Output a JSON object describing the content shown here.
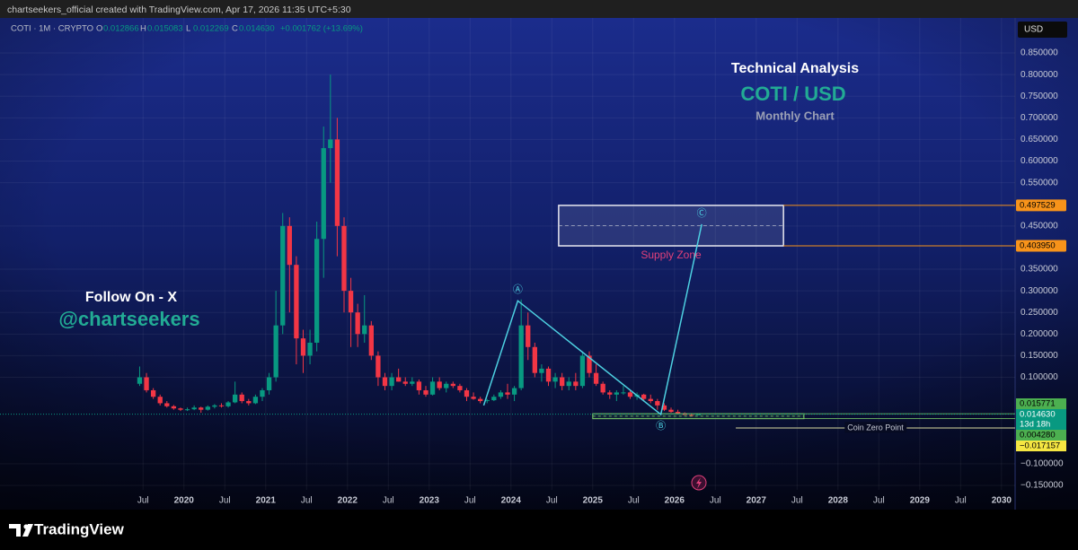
{
  "header": "chartseekers_official created with TradingView.com, Apr 17, 2026 11:35 UTC+5:30",
  "footer": "TradingView",
  "chart_data": {
    "type": "candlestick",
    "symbol": "COTI · 1M · CRYPTO",
    "ohlc_legend": [
      {
        "key": "O",
        "value": "0.012866"
      },
      {
        "key": "H",
        "value": "0.015083"
      },
      {
        "key": "L",
        "value": "0.012269"
      },
      {
        "key": "C",
        "value": "0.014630"
      }
    ],
    "change": "+0.001762 (+13.69%)",
    "currency": "USD",
    "title": "Technical Analysis",
    "subtitle": "COTI / USD",
    "timeframe": "Monthly Chart",
    "promo": [
      "Follow On - X",
      "@chartseekers"
    ],
    "x": [
      "2019-06",
      "2019-07",
      "2019-08",
      "2019-09",
      "2019-10",
      "2019-11",
      "2019-12",
      "2020-01",
      "2020-02",
      "2020-03",
      "2020-04",
      "2020-05",
      "2020-06",
      "2020-07",
      "2020-08",
      "2020-09",
      "2020-10",
      "2020-11",
      "2020-12",
      "2021-01",
      "2021-02",
      "2021-03",
      "2021-04",
      "2021-05",
      "2021-06",
      "2021-07",
      "2021-08",
      "2021-09",
      "2021-10",
      "2021-11",
      "2021-12",
      "2022-01",
      "2022-02",
      "2022-03",
      "2022-04",
      "2022-05",
      "2022-06",
      "2022-07",
      "2022-08",
      "2022-09",
      "2022-10",
      "2022-11",
      "2022-12",
      "2023-01",
      "2023-02",
      "2023-03",
      "2023-04",
      "2023-05",
      "2023-06",
      "2023-07",
      "2023-08",
      "2023-09",
      "2023-10",
      "2023-11",
      "2023-12",
      "2024-01",
      "2024-02",
      "2024-03",
      "2024-04",
      "2024-05",
      "2024-06",
      "2024-07",
      "2024-08",
      "2024-09",
      "2024-10",
      "2024-11",
      "2024-12",
      "2025-01",
      "2025-02",
      "2025-03",
      "2025-04",
      "2025-05",
      "2025-06",
      "2025-07",
      "2025-08",
      "2025-09",
      "2025-10",
      "2025-11",
      "2025-12",
      "2026-01",
      "2026-02",
      "2026-03",
      "2026-04"
    ],
    "open": [
      0.085,
      0.1,
      0.07,
      0.055,
      0.04,
      0.033,
      0.028,
      0.025,
      0.026,
      0.03,
      0.025,
      0.032,
      0.035,
      0.033,
      0.042,
      0.06,
      0.045,
      0.04,
      0.055,
      0.07,
      0.1,
      0.22,
      0.45,
      0.36,
      0.19,
      0.15,
      0.18,
      0.42,
      0.63,
      0.65,
      0.45,
      0.3,
      0.25,
      0.2,
      0.22,
      0.15,
      0.1,
      0.08,
      0.1,
      0.09,
      0.085,
      0.09,
      0.07,
      0.06,
      0.09,
      0.075,
      0.085,
      0.08,
      0.07,
      0.055,
      0.05,
      0.045,
      0.047,
      0.055,
      0.065,
      0.06,
      0.075,
      0.22,
      0.17,
      0.11,
      0.12,
      0.09,
      0.1,
      0.08,
      0.09,
      0.08,
      0.15,
      0.11,
      0.085,
      0.065,
      0.06,
      0.065,
      0.065,
      0.055,
      0.06,
      0.05,
      0.045,
      0.035,
      0.025,
      0.02,
      0.017,
      0.013,
      0.012866
    ],
    "high": [
      0.125,
      0.11,
      0.075,
      0.06,
      0.045,
      0.036,
      0.03,
      0.03,
      0.035,
      0.032,
      0.035,
      0.038,
      0.04,
      0.045,
      0.09,
      0.065,
      0.05,
      0.06,
      0.075,
      0.11,
      0.3,
      0.48,
      0.47,
      0.38,
      0.21,
      0.21,
      0.46,
      0.68,
      0.8,
      0.7,
      0.47,
      0.33,
      0.27,
      0.29,
      0.23,
      0.16,
      0.11,
      0.11,
      0.12,
      0.1,
      0.1,
      0.095,
      0.08,
      0.1,
      0.1,
      0.09,
      0.09,
      0.085,
      0.075,
      0.065,
      0.055,
      0.05,
      0.06,
      0.07,
      0.085,
      0.08,
      0.28,
      0.25,
      0.18,
      0.13,
      0.125,
      0.11,
      0.11,
      0.1,
      0.11,
      0.16,
      0.16,
      0.13,
      0.09,
      0.07,
      0.07,
      0.08,
      0.07,
      0.065,
      0.062,
      0.06,
      0.05,
      0.04,
      0.03,
      0.025,
      0.019,
      0.016,
      0.015083
    ],
    "low": [
      0.08,
      0.065,
      0.05,
      0.035,
      0.03,
      0.025,
      0.022,
      0.022,
      0.024,
      0.018,
      0.023,
      0.028,
      0.03,
      0.03,
      0.04,
      0.04,
      0.035,
      0.038,
      0.045,
      0.06,
      0.09,
      0.2,
      0.25,
      0.13,
      0.11,
      0.13,
      0.16,
      0.33,
      0.55,
      0.38,
      0.25,
      0.17,
      0.17,
      0.18,
      0.14,
      0.08,
      0.07,
      0.07,
      0.09,
      0.08,
      0.08,
      0.06,
      0.055,
      0.058,
      0.07,
      0.065,
      0.075,
      0.065,
      0.045,
      0.048,
      0.04,
      0.04,
      0.045,
      0.05,
      0.05,
      0.045,
      0.07,
      0.14,
      0.1,
      0.09,
      0.08,
      0.075,
      0.07,
      0.07,
      0.07,
      0.075,
      0.1,
      0.08,
      0.06,
      0.05,
      0.045,
      0.06,
      0.05,
      0.048,
      0.045,
      0.04,
      0.025,
      0.022,
      0.018,
      0.015,
      0.012,
      0.012,
      0.012269
    ],
    "close": [
      0.1,
      0.07,
      0.055,
      0.04,
      0.033,
      0.028,
      0.025,
      0.026,
      0.03,
      0.025,
      0.032,
      0.035,
      0.033,
      0.042,
      0.06,
      0.045,
      0.04,
      0.055,
      0.07,
      0.1,
      0.22,
      0.45,
      0.36,
      0.19,
      0.15,
      0.18,
      0.42,
      0.63,
      0.65,
      0.45,
      0.3,
      0.25,
      0.2,
      0.22,
      0.15,
      0.1,
      0.08,
      0.1,
      0.09,
      0.085,
      0.09,
      0.07,
      0.06,
      0.09,
      0.075,
      0.085,
      0.08,
      0.07,
      0.055,
      0.05,
      0.045,
      0.047,
      0.055,
      0.065,
      0.06,
      0.075,
      0.22,
      0.17,
      0.11,
      0.12,
      0.09,
      0.1,
      0.08,
      0.09,
      0.08,
      0.15,
      0.11,
      0.085,
      0.065,
      0.06,
      0.065,
      0.065,
      0.055,
      0.06,
      0.05,
      0.045,
      0.035,
      0.025,
      0.02,
      0.017,
      0.013,
      0.0129,
      0.01463
    ],
    "up_color": "#089981",
    "down_color": "#f23645",
    "xlim": [
      "2017-10",
      "2030-03"
    ],
    "xticks": [
      {
        "value": "2019-07",
        "label": "Jul"
      },
      {
        "value": "2020-01",
        "label": "2020"
      },
      {
        "value": "2020-07",
        "label": "Jul"
      },
      {
        "value": "2021-01",
        "label": "2021"
      },
      {
        "value": "2021-07",
        "label": "Jul"
      },
      {
        "value": "2022-01",
        "label": "2022"
      },
      {
        "value": "2022-07",
        "label": "Jul"
      },
      {
        "value": "2023-01",
        "label": "2023"
      },
      {
        "value": "2023-07",
        "label": "Jul"
      },
      {
        "value": "2024-01",
        "label": "2024"
      },
      {
        "value": "2024-07",
        "label": "Jul"
      },
      {
        "value": "2025-01",
        "label": "2025"
      },
      {
        "value": "2025-07",
        "label": "Jul"
      },
      {
        "value": "2026-01",
        "label": "2026"
      },
      {
        "value": "2026-07",
        "label": "Jul"
      },
      {
        "value": "2027-01",
        "label": "2027"
      },
      {
        "value": "2027-07",
        "label": "Jul"
      },
      {
        "value": "2028-01",
        "label": "2028"
      },
      {
        "value": "2028-07",
        "label": "Jul"
      },
      {
        "value": "2029-01",
        "label": "2029"
      },
      {
        "value": "2029-07",
        "label": "Jul"
      },
      {
        "value": "2030-01",
        "label": "2030"
      }
    ],
    "ylim": [
      -0.206,
      0.931
    ],
    "yticks": [
      {
        "value": 0.85,
        "label": "0.850000"
      },
      {
        "value": 0.8,
        "label": "0.800000"
      },
      {
        "value": 0.75,
        "label": "0.750000"
      },
      {
        "value": 0.7,
        "label": "0.700000"
      },
      {
        "value": 0.65,
        "label": "0.650000"
      },
      {
        "value": 0.6,
        "label": "0.600000"
      },
      {
        "value": 0.55,
        "label": "0.550000"
      },
      {
        "value": 0.45,
        "label": "0.450000"
      },
      {
        "value": 0.35,
        "label": "0.350000"
      },
      {
        "value": 0.3,
        "label": "0.300000"
      },
      {
        "value": 0.25,
        "label": "0.250000"
      },
      {
        "value": 0.2,
        "label": "0.200000"
      },
      {
        "value": 0.15,
        "label": "0.150000"
      },
      {
        "value": 0.1,
        "label": "0.100000"
      },
      {
        "value": -0.1,
        "label": "−0.100000"
      },
      {
        "value": -0.15,
        "label": "−0.150000"
      }
    ],
    "grid": true,
    "current_price": {
      "value": 0.01463,
      "label": "0.014630",
      "countdown": "13d 18h"
    },
    "supply_zone": {
      "label": "Supply Zone",
      "start": "2024-08",
      "end": "2027-05",
      "top": {
        "value": 0.497529,
        "label": "0.497529"
      },
      "bottom": {
        "value": 0.40395,
        "label": "0.403950"
      }
    },
    "range_box": {
      "start": "2025-01",
      "end": "2027-08",
      "top": {
        "value": 0.015771,
        "label": "0.015771"
      },
      "bottom": {
        "value": 0.00428,
        "label": "0.004280"
      }
    },
    "zero_point": {
      "label": "Coin Zero Point",
      "start": "2026-10",
      "value": -0.017157,
      "value_label": "−0.017157"
    },
    "wave": {
      "x": [
        "2023-09",
        "2024-02",
        "2025-11",
        "2026-05"
      ],
      "values": [
        0.035,
        0.277,
        0.014,
        0.454
      ],
      "labels": [
        null,
        "Ⓐ",
        "Ⓑ",
        "Ⓒ"
      ],
      "color": "#4dd0e1"
    }
  }
}
